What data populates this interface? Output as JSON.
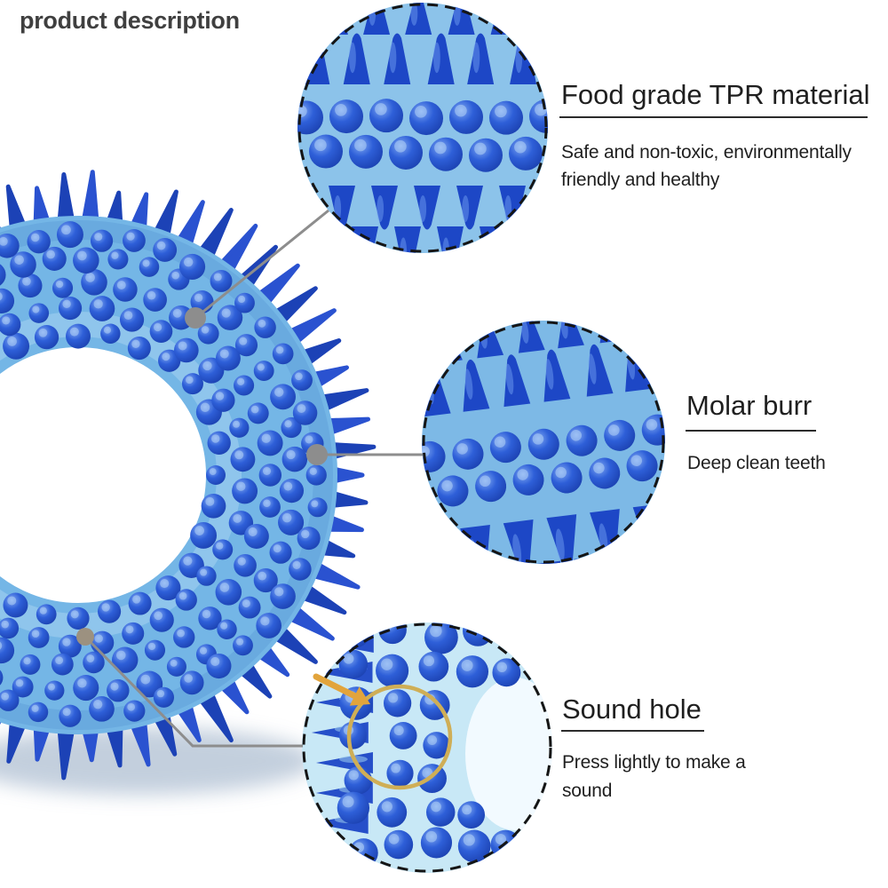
{
  "page": {
    "title": "product description"
  },
  "callouts": [
    {
      "id": "tpr",
      "heading": "Food grade TPR material",
      "lines": [
        "Safe and non-toxic, environmentally",
        "friendly and healthy"
      ]
    },
    {
      "id": "molar",
      "heading": "Molar burr",
      "lines": [
        "Deep clean teeth"
      ]
    },
    {
      "id": "sound",
      "heading": "Sound hole",
      "lines": [
        "Press lightly to make a",
        "sound"
      ]
    }
  ],
  "colors": {
    "title_text": "#3f3f3f",
    "body_text": "#1f1f1f",
    "underline": "#2b2b2b",
    "connector_gray": "#8d8d8d",
    "connector_dot_tan": "#9c9180",
    "dash_border": "#151515",
    "orange_highlight": "#e2a43c",
    "orange_ring": "#cfae56",
    "toy_body_blue": "#74b6e6",
    "toy_spike_blue": "#2a52d0",
    "toy_spike_dark": "#1c42b6",
    "bump_blue_deep": "#1a3fae",
    "bump_blue_mid": "#2e5fd8",
    "bump_blue_light": "#7fa8f2",
    "texture_bg_top": "#8cc3ea",
    "texture_bg_mid": "#7db9e6",
    "texture_bg_bottom": "#c8e8f6",
    "cone_blue": "#1d47c6",
    "cone_highlight": "#6e9cf0",
    "pale_spike": "#9fd0ee",
    "white_patch": "#f4fbff",
    "shadow": "#b9c7d8"
  }
}
